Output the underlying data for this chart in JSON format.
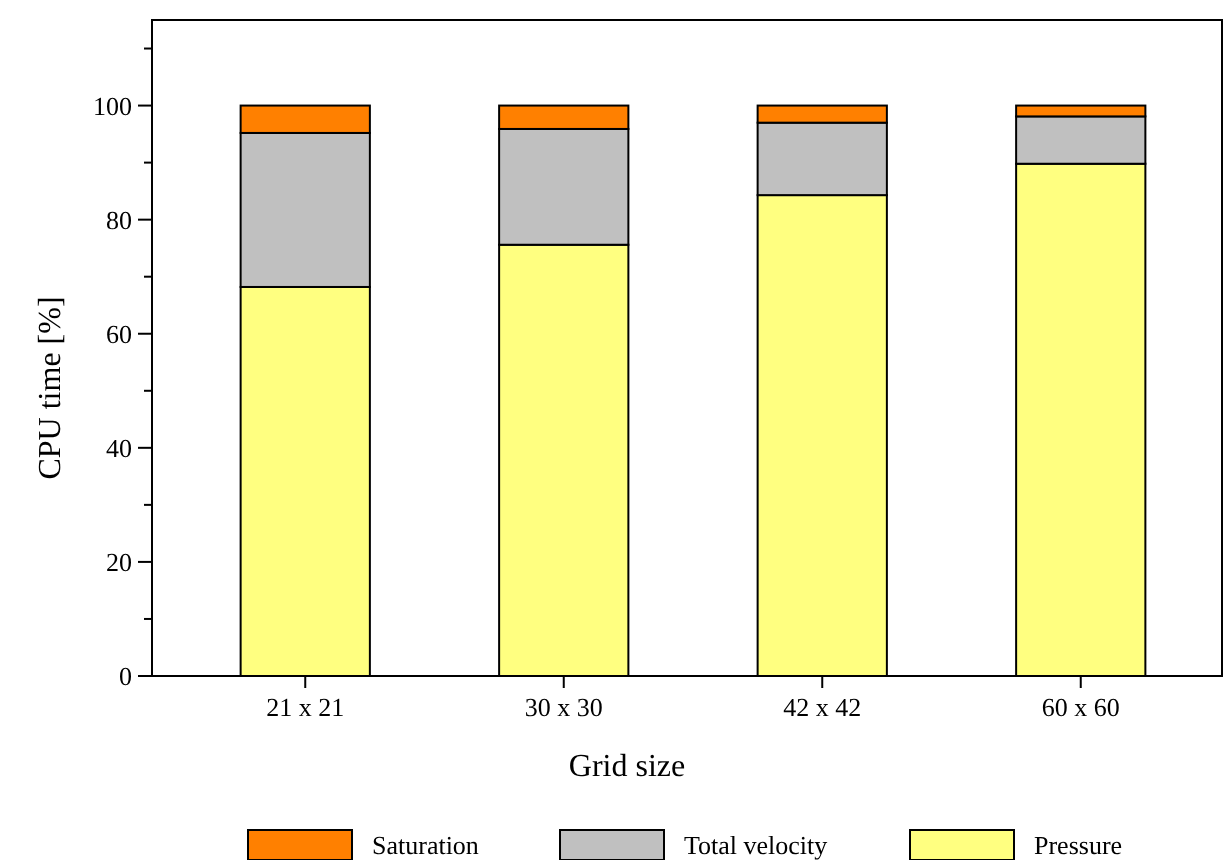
{
  "chart_data": {
    "type": "bar",
    "stacked": true,
    "xlabel": "Grid size",
    "ylabel": "CPU time [%]",
    "categories": [
      "21 x 21",
      "30 x 30",
      "42 x 42",
      "60 x 60"
    ],
    "series": [
      {
        "name": "Pressure",
        "color": "#ffff80",
        "values": [
          68.2,
          75.6,
          84.3,
          89.8
        ]
      },
      {
        "name": "Total velocity",
        "color": "#c0c0c0",
        "values": [
          27.0,
          20.3,
          12.7,
          8.3
        ]
      },
      {
        "name": "Saturation",
        "color": "#ff8000",
        "values": [
          4.8,
          4.1,
          3.0,
          1.9
        ]
      }
    ],
    "ylim": [
      0,
      115
    ],
    "yticks": [
      0,
      {
        "value": 10,
        "label": null
      },
      20,
      {
        "value": 30,
        "label": null
      },
      40,
      {
        "value": 50,
        "label": null
      },
      60,
      {
        "value": 70,
        "label": null
      },
      80,
      {
        "value": 90,
        "label": null
      },
      100,
      {
        "value": 110,
        "label": null
      }
    ],
    "legend": "bottom",
    "grid": false
  }
}
